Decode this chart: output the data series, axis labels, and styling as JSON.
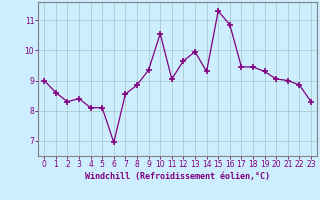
{
  "x": [
    0,
    1,
    2,
    3,
    4,
    5,
    6,
    7,
    8,
    9,
    10,
    11,
    12,
    13,
    14,
    15,
    16,
    17,
    18,
    19,
    20,
    21,
    22,
    23
  ],
  "y": [
    9.0,
    8.6,
    8.3,
    8.4,
    8.1,
    8.1,
    6.95,
    8.55,
    8.85,
    9.35,
    10.55,
    9.05,
    9.65,
    9.95,
    9.3,
    11.3,
    10.85,
    9.45,
    9.45,
    9.3,
    9.05,
    9.0,
    8.85,
    8.3
  ],
  "line_color": "#800080",
  "marker": "+",
  "marker_color": "#800080",
  "marker_size": 5,
  "marker_linewidth": 1.2,
  "bg_color": "#cceeff",
  "grid_color": "#aacccc",
  "xlabel": "Windchill (Refroidissement éolien,°C)",
  "xlabel_color": "#800080",
  "tick_color": "#800080",
  "spine_color": "#808080",
  "ylim": [
    6.5,
    11.6
  ],
  "yticks": [
    7,
    8,
    9,
    10,
    11
  ],
  "xticks": [
    0,
    1,
    2,
    3,
    4,
    5,
    6,
    7,
    8,
    9,
    10,
    11,
    12,
    13,
    14,
    15,
    16,
    17,
    18,
    19,
    20,
    21,
    22,
    23
  ],
  "xlim": [
    -0.5,
    23.5
  ],
  "figsize": [
    3.2,
    2.0
  ],
  "dpi": 100
}
